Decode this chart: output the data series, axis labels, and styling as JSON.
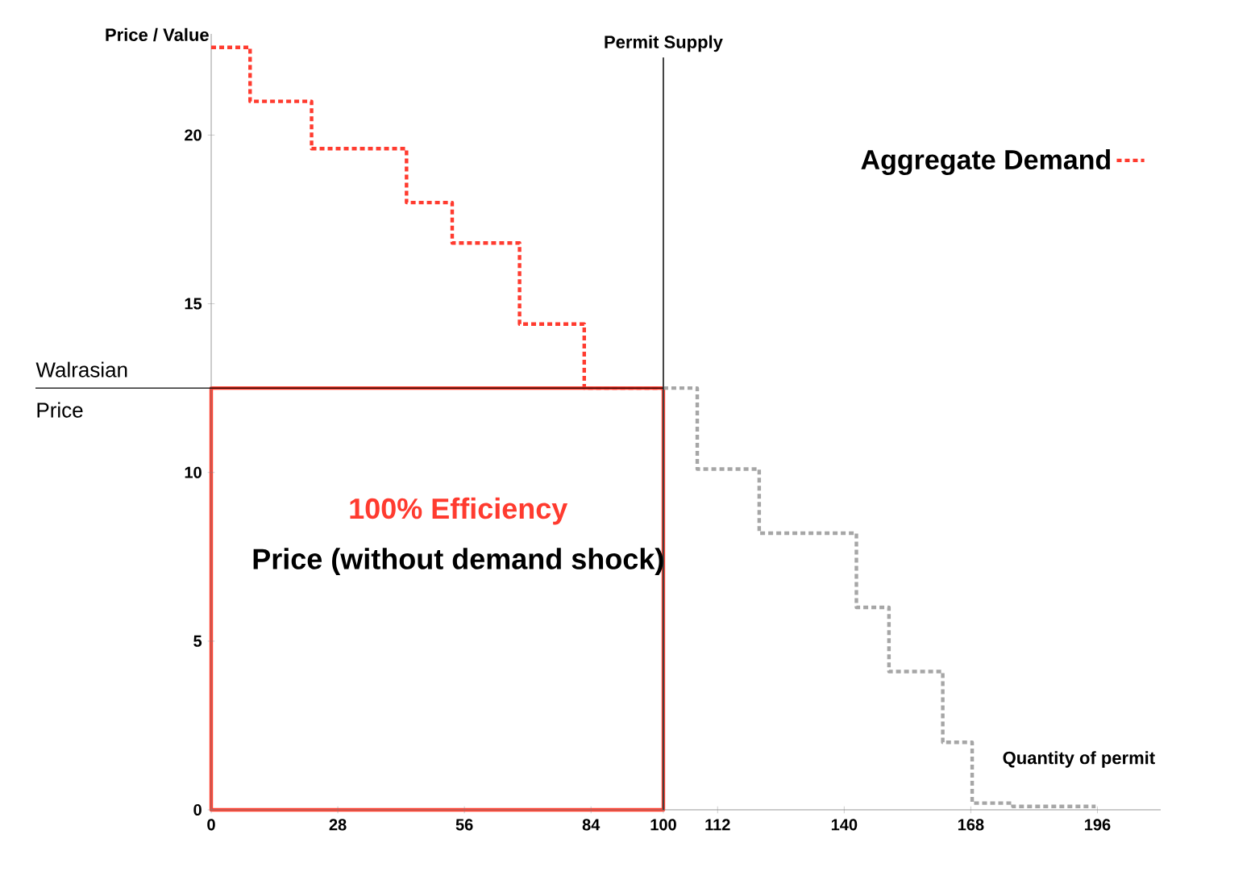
{
  "chart_data": {
    "type": "step",
    "ylabel": "Price / Value",
    "xlabel": "Quantity of permit",
    "xlim": [
      0,
      210
    ],
    "ylim": [
      0,
      23
    ],
    "xticks": [
      0,
      28,
      56,
      84,
      100,
      112,
      140,
      168,
      196
    ],
    "yticks": [
      0,
      5,
      10,
      15,
      20
    ],
    "series": [
      {
        "name": "Aggregate Demand",
        "color": "#ff3b2f",
        "line_style": "dashed",
        "x": [
          0,
          8.6,
          22.2,
          43.2,
          53.3,
          68.2,
          82.5,
          100
        ],
        "values": [
          22.6,
          21.0,
          19.6,
          18.0,
          16.8,
          14.4,
          12.5,
          12.5
        ]
      },
      {
        "color": "#a6a6a6",
        "line_style": "dashed",
        "x": [
          100,
          107.5,
          121.2,
          142.7,
          149.9,
          161.8,
          168.3,
          177.3,
          195.6
        ],
        "values": [
          12.5,
          10.1,
          8.2,
          6.0,
          4.1,
          2.0,
          0.2,
          0.1,
          0.1
        ]
      }
    ],
    "ref_lines": [
      {
        "axis": "x",
        "value": 100,
        "label": "Permit Supply",
        "color": "#404040"
      },
      {
        "axis": "y",
        "value": 12.5,
        "label": "Walrasian Price",
        "color": "#000000"
      }
    ],
    "annotations": [
      "100% Efficiency",
      "Price (without demand shock)"
    ],
    "legend": "top right",
    "grid": false
  }
}
